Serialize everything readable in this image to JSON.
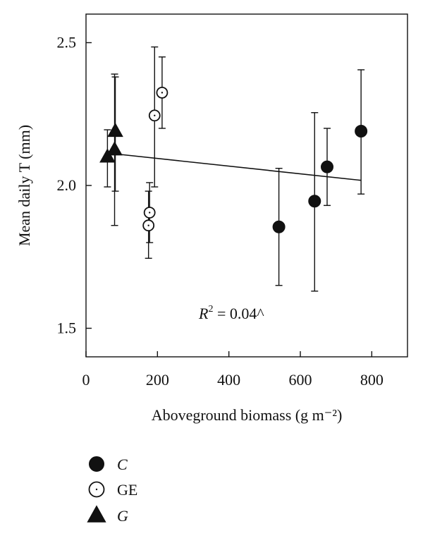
{
  "chart_data": {
    "type": "scatter",
    "xlabel": "Aboveground biomass (g m⁻²)",
    "ylabel": "Mean daily T (mm)",
    "xlim": [
      0,
      900
    ],
    "ylim": [
      1.4,
      2.6
    ],
    "xticks": [
      0,
      200,
      400,
      600,
      800
    ],
    "yticks": [
      1.5,
      2.0,
      2.5
    ],
    "ytick_labels": [
      "1.5",
      "2.0",
      "2.5"
    ],
    "grid": false,
    "legend_position": "bottom-left, below plot",
    "annotation": {
      "prefix": "R",
      "sup": "2",
      "text": " = 0.04^"
    },
    "series": [
      {
        "name": "C",
        "marker": "filled-circle",
        "points": [
          {
            "x": 540,
            "y": 1.855,
            "lo": 1.65,
            "hi": 2.06
          },
          {
            "x": 640,
            "y": 1.945,
            "lo": 1.63,
            "hi": 2.255
          },
          {
            "x": 675,
            "y": 2.065,
            "lo": 1.93,
            "hi": 2.2
          },
          {
            "x": 770,
            "y": 2.19,
            "lo": 1.97,
            "hi": 2.405
          }
        ]
      },
      {
        "name": "GE",
        "marker": "open-circle",
        "points": [
          {
            "x": 175,
            "y": 1.86,
            "lo": 1.745,
            "hi": 1.98
          },
          {
            "x": 178,
            "y": 1.905,
            "lo": 1.8,
            "hi": 2.01
          },
          {
            "x": 192,
            "y": 2.245,
            "lo": 1.995,
            "hi": 2.485
          },
          {
            "x": 213,
            "y": 2.325,
            "lo": 2.2,
            "hi": 2.45
          }
        ]
      },
      {
        "name": "G",
        "marker": "filled-triangle",
        "points": [
          {
            "x": 60,
            "y": 2.1,
            "lo": 1.995,
            "hi": 2.195
          },
          {
            "x": 80,
            "y": 2.125,
            "lo": 1.86,
            "hi": 2.39
          },
          {
            "x": 82,
            "y": 2.19,
            "lo": 1.98,
            "hi": 2.38
          }
        ]
      }
    ],
    "regression_line": {
      "x": [
        70,
        770
      ],
      "y": [
        2.112,
        2.018
      ]
    }
  }
}
